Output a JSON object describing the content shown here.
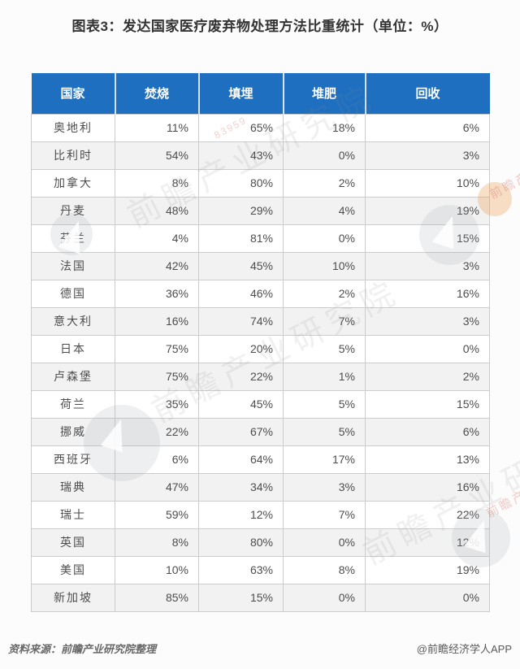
{
  "title": "图表3：发达国家医疗废弃物处理方法比重统计（单位：%）",
  "table": {
    "col_headers": [
      "国家",
      "焚烧",
      "填埋",
      "堆肥",
      "回收"
    ]
  },
  "chart_data": {
    "type": "table",
    "title": "图表3：发达国家医疗废弃物处理方法比重统计（单位：%）",
    "unit": "%",
    "categories": [
      "奥地利",
      "比利时",
      "加拿大",
      "丹麦",
      "芬兰",
      "法国",
      "德国",
      "意大利",
      "日本",
      "卢森堡",
      "荷兰",
      "挪威",
      "西班牙",
      "瑞典",
      "瑞士",
      "英国",
      "美国",
      "新加坡"
    ],
    "series": [
      {
        "name": "焚烧",
        "values": [
          11,
          54,
          8,
          48,
          4,
          42,
          36,
          16,
          75,
          75,
          35,
          22,
          6,
          47,
          59,
          8,
          10,
          85
        ]
      },
      {
        "name": "填埋",
        "values": [
          65,
          43,
          80,
          29,
          81,
          45,
          46,
          74,
          20,
          22,
          45,
          67,
          64,
          34,
          12,
          80,
          63,
          15
        ]
      },
      {
        "name": "堆肥",
        "values": [
          18,
          0,
          2,
          4,
          0,
          10,
          2,
          7,
          5,
          1,
          5,
          5,
          17,
          3,
          7,
          0,
          8,
          0
        ]
      },
      {
        "name": "回收",
        "values": [
          6,
          3,
          10,
          19,
          15,
          3,
          16,
          3,
          0,
          2,
          15,
          6,
          13,
          16,
          22,
          12,
          19,
          0
        ]
      }
    ]
  },
  "footer": {
    "source": "资料来源：前瞻产业研究院整理",
    "credit": "@前瞻经济学人APP"
  },
  "watermark": {
    "text": "前瞻产业研究院",
    "number": "83959"
  },
  "colors": {
    "header_bg": "#1e6fc0",
    "header_text": "#ffffff",
    "row_alt_bg": "#f2f2f2",
    "border": "#cccccc",
    "title_text": "#333333",
    "footer_text": "#696969"
  }
}
